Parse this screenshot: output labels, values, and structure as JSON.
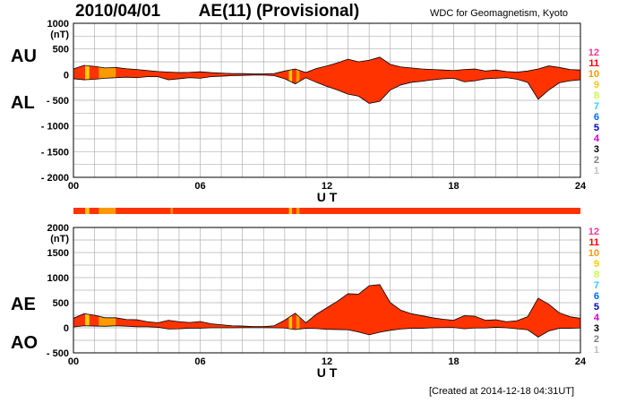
{
  "header": {
    "date": "2010/04/01",
    "index_title": "AE(11) (Provisional)",
    "source": "WDC for Geomagnetism, Kyoto",
    "created": "[Created at 2014-12-18 04:31UT]"
  },
  "colors": {
    "fill_main": "#ff3300",
    "fill_orange": "#ff9900",
    "fill_yellow": "#ffcc00",
    "grid": "#b0b0b0"
  },
  "station_key": [
    {
      "value": "12",
      "color": "#ff3399"
    },
    {
      "value": "11",
      "color": "#ff0000"
    },
    {
      "value": "10",
      "color": "#ff9900"
    },
    {
      "value": "9",
      "color": "#ffcc00"
    },
    {
      "value": "8",
      "color": "#ccff33"
    },
    {
      "value": "7",
      "color": "#33ccff"
    },
    {
      "value": "6",
      "color": "#0066ff"
    },
    {
      "value": "5",
      "color": "#0000cc"
    },
    {
      "value": "4",
      "color": "#cc00cc"
    },
    {
      "value": "3",
      "color": "#000000"
    },
    {
      "value": "2",
      "color": "#808080"
    },
    {
      "value": "1",
      "color": "#c0c0c0"
    }
  ],
  "chart_data": [
    {
      "type": "area",
      "panel": "AU/AL",
      "labels": {
        "upper": "AU",
        "lower": "AL"
      },
      "ylabel": "(nT)",
      "xlabel": "U T",
      "x_ticks": [
        "00",
        "06",
        "12",
        "18",
        "24"
      ],
      "y_ticks": [
        "1000",
        "500",
        "0",
        "- 500",
        "- 1000",
        "- 1500",
        "- 2000"
      ],
      "xlim": [
        0,
        24
      ],
      "ylim": [
        -2000,
        1000
      ],
      "grid": true,
      "series": [
        {
          "name": "AU",
          "x": [
            0,
            0.5,
            1,
            1.5,
            2,
            2.5,
            3,
            3.5,
            4,
            4.5,
            5,
            5.5,
            6,
            6.5,
            7,
            7.5,
            8,
            8.5,
            9,
            9.5,
            10,
            10.5,
            11,
            11.5,
            12,
            12.5,
            13,
            13.5,
            14,
            14.5,
            15,
            15.5,
            16,
            16.5,
            17,
            17.5,
            18,
            18.5,
            19,
            19.5,
            20,
            20.5,
            21,
            21.5,
            22,
            22.5,
            23,
            23.5,
            24
          ],
          "values": [
            110,
            180,
            160,
            130,
            140,
            115,
            100,
            80,
            60,
            50,
            40,
            45,
            55,
            40,
            30,
            20,
            20,
            15,
            15,
            20,
            70,
            110,
            40,
            120,
            170,
            230,
            300,
            250,
            280,
            340,
            200,
            150,
            130,
            110,
            100,
            90,
            80,
            100,
            110,
            70,
            90,
            60,
            50,
            70,
            110,
            170,
            140,
            100,
            90
          ]
        },
        {
          "name": "AL",
          "x": [
            0,
            0.5,
            1,
            1.5,
            2,
            2.5,
            3,
            3.5,
            4,
            4.5,
            5,
            5.5,
            6,
            6.5,
            7,
            7.5,
            8,
            8.5,
            9,
            9.5,
            10,
            10.5,
            11,
            11.5,
            12,
            12.5,
            13,
            13.5,
            14,
            14.5,
            15,
            15.5,
            16,
            16.5,
            17,
            17.5,
            18,
            18.5,
            19,
            19.5,
            20,
            20.5,
            21,
            21.5,
            22,
            22.5,
            23,
            23.5,
            24
          ],
          "values": [
            -80,
            -100,
            -90,
            -70,
            -60,
            -50,
            -60,
            -40,
            -40,
            -100,
            -80,
            -60,
            -70,
            -40,
            -30,
            -20,
            -15,
            -10,
            -10,
            -20,
            -80,
            -180,
            -60,
            -150,
            -230,
            -300,
            -380,
            -420,
            -560,
            -520,
            -300,
            -200,
            -150,
            -130,
            -100,
            -80,
            -70,
            -140,
            -120,
            -80,
            -70,
            -60,
            -90,
            -150,
            -480,
            -300,
            -160,
            -120,
            -100
          ]
        }
      ]
    },
    {
      "type": "area",
      "panel": "AE/AO",
      "labels": {
        "upper": "AE",
        "lower": "AO"
      },
      "ylabel": "(nT)",
      "xlabel": "U T",
      "x_ticks": [
        "00",
        "06",
        "12",
        "18",
        "24"
      ],
      "y_ticks": [
        "2000",
        "1500",
        "1000",
        "500",
        "0",
        "- 500"
      ],
      "xlim": [
        0,
        24
      ],
      "ylim": [
        -500,
        2000
      ],
      "grid": true,
      "series": [
        {
          "name": "AE",
          "x": [
            0,
            0.5,
            1,
            1.5,
            2,
            2.5,
            3,
            3.5,
            4,
            4.5,
            5,
            5.5,
            6,
            6.5,
            7,
            7.5,
            8,
            8.5,
            9,
            9.5,
            10,
            10.5,
            11,
            11.5,
            12,
            12.5,
            13,
            13.5,
            14,
            14.5,
            15,
            15.5,
            16,
            16.5,
            17,
            17.5,
            18,
            18.5,
            19,
            19.5,
            20,
            20.5,
            21,
            21.5,
            22,
            22.5,
            23,
            23.5,
            24
          ],
          "values": [
            190,
            280,
            250,
            200,
            200,
            165,
            160,
            120,
            100,
            150,
            120,
            105,
            125,
            80,
            60,
            40,
            35,
            25,
            25,
            40,
            150,
            290,
            100,
            270,
            400,
            530,
            680,
            670,
            840,
            860,
            500,
            350,
            280,
            240,
            200,
            170,
            150,
            240,
            230,
            150,
            160,
            120,
            140,
            220,
            590,
            470,
            300,
            220,
            190
          ]
        },
        {
          "name": "AO",
          "x": [
            0,
            0.5,
            1,
            1.5,
            2,
            2.5,
            3,
            3.5,
            4,
            4.5,
            5,
            5.5,
            6,
            6.5,
            7,
            7.5,
            8,
            8.5,
            9,
            9.5,
            10,
            10.5,
            11,
            11.5,
            12,
            12.5,
            13,
            13.5,
            14,
            14.5,
            15,
            15.5,
            16,
            16.5,
            17,
            17.5,
            18,
            18.5,
            19,
            19.5,
            20,
            20.5,
            21,
            21.5,
            22,
            22.5,
            23,
            23.5,
            24
          ],
          "values": [
            15,
            40,
            35,
            30,
            40,
            32,
            20,
            20,
            10,
            -25,
            -20,
            -8,
            -8,
            0,
            0,
            0,
            2,
            2,
            2,
            0,
            -5,
            -35,
            -10,
            -15,
            -30,
            -35,
            -40,
            -85,
            -140,
            -90,
            -50,
            -25,
            -10,
            -10,
            0,
            5,
            5,
            -20,
            -5,
            -5,
            10,
            0,
            -20,
            -40,
            -185,
            -65,
            -10,
            -10,
            -5
          ]
        }
      ]
    }
  ]
}
